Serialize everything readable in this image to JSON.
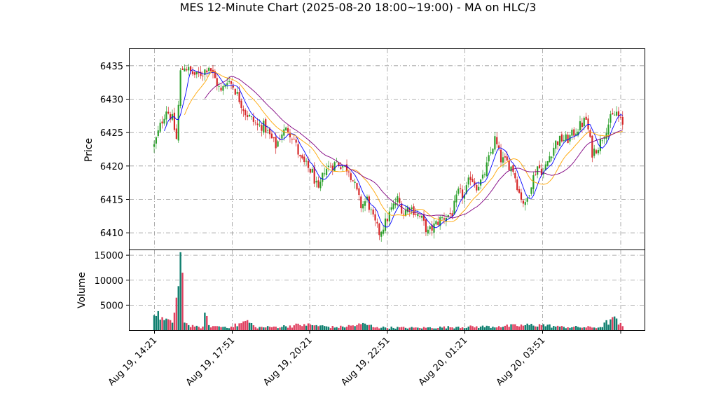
{
  "chart_data": {
    "type": "candlestick",
    "title": "MES 12-Minute Chart (2025-08-20 18:00~19:00) - MA on HLC/3",
    "panels": [
      {
        "name": "price",
        "ylabel": "Price",
        "ylim": [
          6407.5,
          6437.5
        ],
        "yticks": [
          6410,
          6415,
          6420,
          6425,
          6430,
          6435
        ]
      },
      {
        "name": "volume",
        "ylabel": "Volume",
        "ylim": [
          0,
          16000
        ],
        "yticks": [
          5000,
          10000,
          15000
        ]
      }
    ],
    "xlabel": "",
    "xticks": [
      "Aug 19, 14:21",
      "Aug 19, 17:51",
      "Aug 19, 20:21",
      "Aug 19, 22:51",
      "Aug 20, 01:21",
      "Aug 20, 03:51"
    ],
    "grid": true,
    "up_color": "#2ca02c",
    "down_color": "#d62728",
    "volume_up_color": "#0f7f6f",
    "volume_down_color": "#e04060",
    "ma_fast_color": "#0000ff",
    "ma_mid_color": "#ffa500",
    "ma_slow_color": "#800080",
    "price_anchors": [
      [
        0,
        6423
      ],
      [
        3,
        6426
      ],
      [
        6,
        6428.5
      ],
      [
        9,
        6427
      ],
      [
        11,
        6424
      ],
      [
        13,
        6434
      ],
      [
        15,
        6435
      ],
      [
        18,
        6434
      ],
      [
        21,
        6433.5
      ],
      [
        24,
        6434
      ],
      [
        27,
        6435
      ],
      [
        30,
        6433
      ],
      [
        33,
        6431
      ],
      [
        36,
        6433
      ],
      [
        39,
        6432
      ],
      [
        42,
        6430
      ],
      [
        45,
        6428
      ],
      [
        48,
        6427
      ],
      [
        51,
        6426
      ],
      [
        54,
        6426
      ],
      [
        57,
        6424.5
      ],
      [
        60,
        6423
      ],
      [
        63,
        6425
      ],
      [
        66,
        6425.5
      ],
      [
        69,
        6424
      ],
      [
        72,
        6421
      ],
      [
        75,
        6420
      ],
      [
        78,
        6419
      ],
      [
        81,
        6416
      ],
      [
        84,
        6419.5
      ],
      [
        87,
        6420
      ],
      [
        90,
        6420.5
      ],
      [
        93,
        6420
      ],
      [
        96,
        6419.5
      ],
      [
        99,
        6417
      ],
      [
        102,
        6414
      ],
      [
        105,
        6415
      ],
      [
        108,
        6412
      ],
      [
        111,
        6410
      ],
      [
        114,
        6411.5
      ],
      [
        117,
        6413.5
      ],
      [
        120,
        6415
      ],
      [
        123,
        6413
      ],
      [
        126,
        6414
      ],
      [
        129,
        6413
      ],
      [
        132,
        6412
      ],
      [
        135,
        6410
      ],
      [
        138,
        6411
      ],
      [
        141,
        6412
      ],
      [
        144,
        6412.5
      ],
      [
        147,
        6413
      ],
      [
        150,
        6416
      ],
      [
        153,
        6415.5
      ],
      [
        156,
        6418.5
      ],
      [
        159,
        6417
      ],
      [
        162,
        6418
      ],
      [
        165,
        6421
      ],
      [
        168,
        6424
      ],
      [
        171,
        6421
      ],
      [
        174,
        6420.5
      ],
      [
        177,
        6419.5
      ],
      [
        180,
        6416
      ],
      [
        183,
        6414
      ],
      [
        186,
        6417.5
      ],
      [
        189,
        6420
      ],
      [
        192,
        6419
      ],
      [
        195,
        6421.5
      ],
      [
        198,
        6423.5
      ],
      [
        201,
        6424
      ],
      [
        204,
        6424
      ],
      [
        207,
        6425
      ],
      [
        210,
        6426
      ],
      [
        213,
        6427
      ],
      [
        216,
        6422
      ],
      [
        219,
        6423
      ],
      [
        222,
        6425
      ],
      [
        225,
        6427
      ],
      [
        228,
        6428
      ],
      [
        231,
        6426
      ]
    ],
    "volume_profile": [
      [
        0,
        3000
      ],
      [
        2,
        3800
      ],
      [
        4,
        2600
      ],
      [
        6,
        2300
      ],
      [
        8,
        2000
      ],
      [
        10,
        3500
      ],
      [
        11,
        6500
      ],
      [
        12,
        8800
      ],
      [
        13,
        15600
      ],
      [
        14,
        11500
      ],
      [
        15,
        1500
      ],
      [
        17,
        1000
      ],
      [
        20,
        700
      ],
      [
        25,
        600
      ],
      [
        25,
        3500
      ],
      [
        27,
        1000
      ],
      [
        30,
        800
      ],
      [
        38,
        700
      ],
      [
        46,
        2000
      ],
      [
        50,
        600
      ],
      [
        60,
        700
      ],
      [
        74,
        1200
      ],
      [
        80,
        1000
      ],
      [
        90,
        600
      ],
      [
        104,
        1300
      ],
      [
        110,
        600
      ],
      [
        130,
        500
      ],
      [
        150,
        700
      ],
      [
        170,
        800
      ],
      [
        190,
        1200
      ],
      [
        200,
        700
      ],
      [
        220,
        600
      ],
      [
        226,
        2600
      ],
      [
        231,
        800
      ]
    ]
  }
}
